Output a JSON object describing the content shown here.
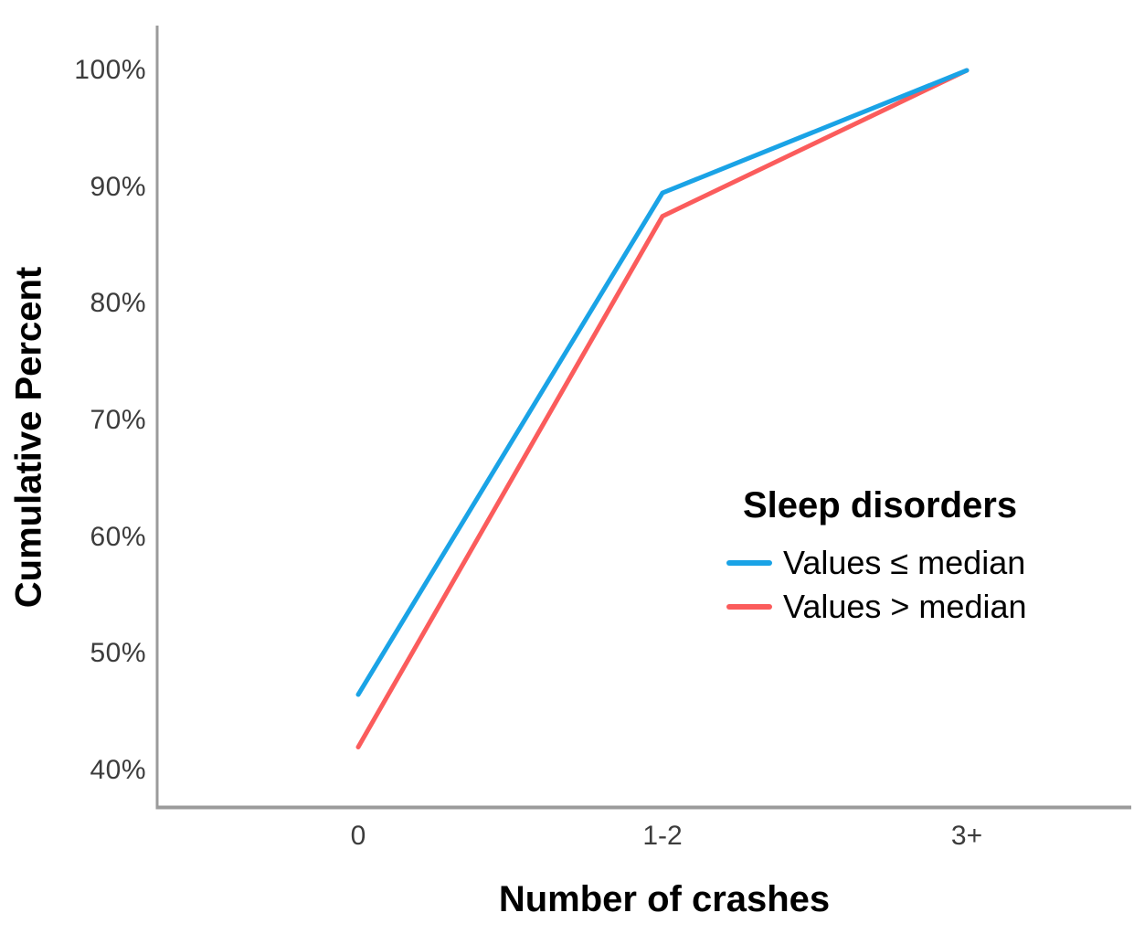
{
  "chart_data": {
    "type": "line",
    "title": "",
    "xlabel": "Number of crashes",
    "ylabel": "Cumulative Percent",
    "categories": [
      "0",
      "1-2",
      "3+"
    ],
    "y_ticks": [
      "40%",
      "50%",
      "60%",
      "70%",
      "80%",
      "90%",
      "100%"
    ],
    "y_range": [
      40,
      100
    ],
    "grid": false,
    "legend": {
      "title": "Sleep disorders",
      "position": "center-right"
    },
    "series": [
      {
        "name": "Values ≤ median",
        "color": "#1aa3e6",
        "values": [
          46.5,
          89.5,
          100
        ]
      },
      {
        "name": "Values > median",
        "color": "#fb5c5c",
        "values": [
          42,
          87.5,
          100
        ]
      }
    ],
    "axis_color": "#9b9b9b",
    "tick_label_color": "#3c3c3c",
    "background_color": "#ffffff"
  }
}
